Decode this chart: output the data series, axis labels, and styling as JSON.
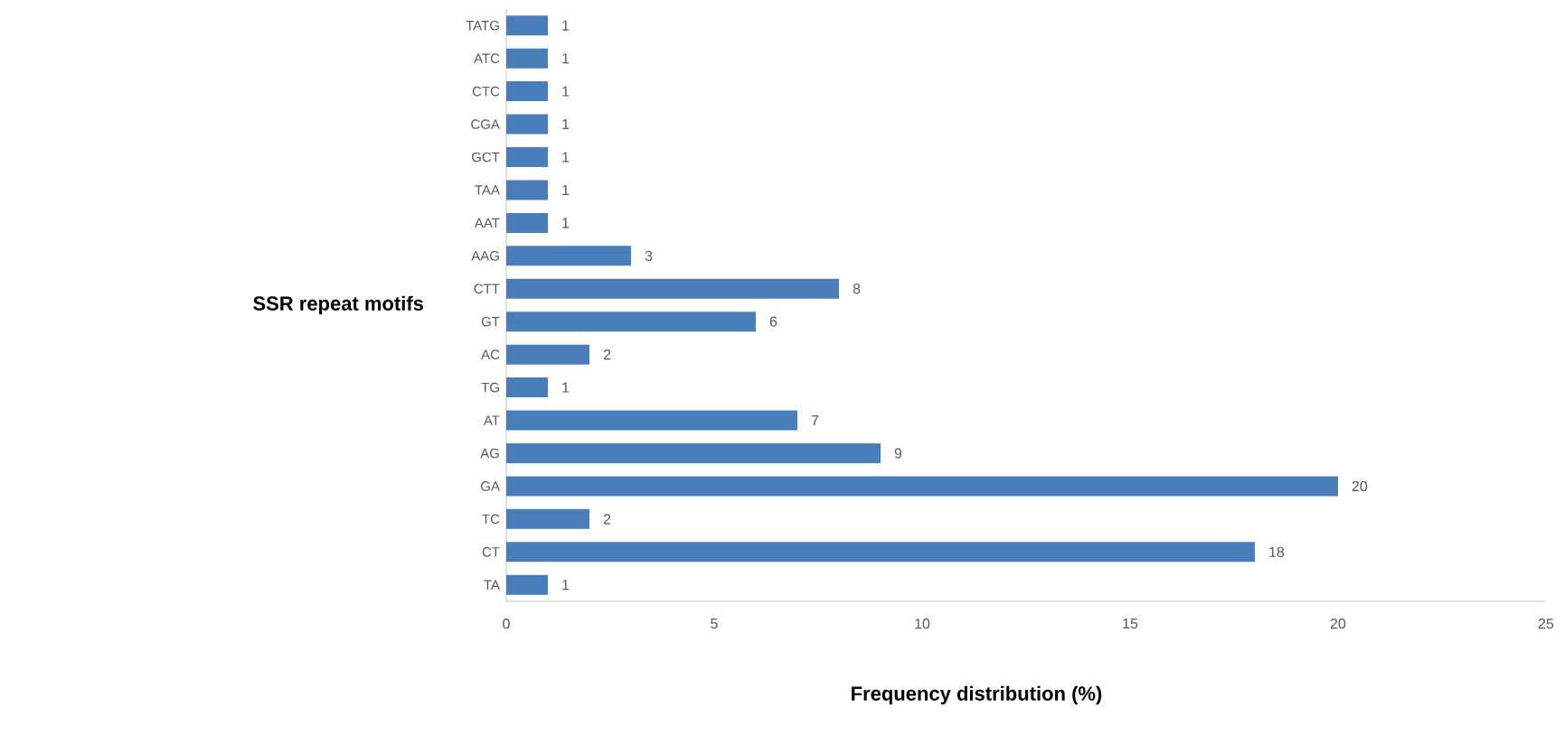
{
  "chart_data": {
    "type": "bar",
    "orientation": "horizontal",
    "categories": [
      "TATG",
      "ATC",
      "CTC",
      "CGA",
      "GCT",
      "TAA",
      "AAT",
      "AAG",
      "CTT",
      "GT",
      "AC",
      "TG",
      "AT",
      "AG",
      "GA",
      "TC",
      "CT",
      "TA"
    ],
    "values": [
      1,
      1,
      1,
      1,
      1,
      1,
      1,
      3,
      8,
      6,
      2,
      1,
      7,
      9,
      20,
      2,
      18,
      1
    ],
    "color": "#4a7ebb",
    "xlim": [
      0,
      25
    ],
    "xticks": [
      0,
      5,
      10,
      15,
      20,
      25
    ],
    "xlabel": "Frequency distribution (%)",
    "ylabel": "SSR repeat motifs",
    "data_labels": true,
    "grid": false
  }
}
